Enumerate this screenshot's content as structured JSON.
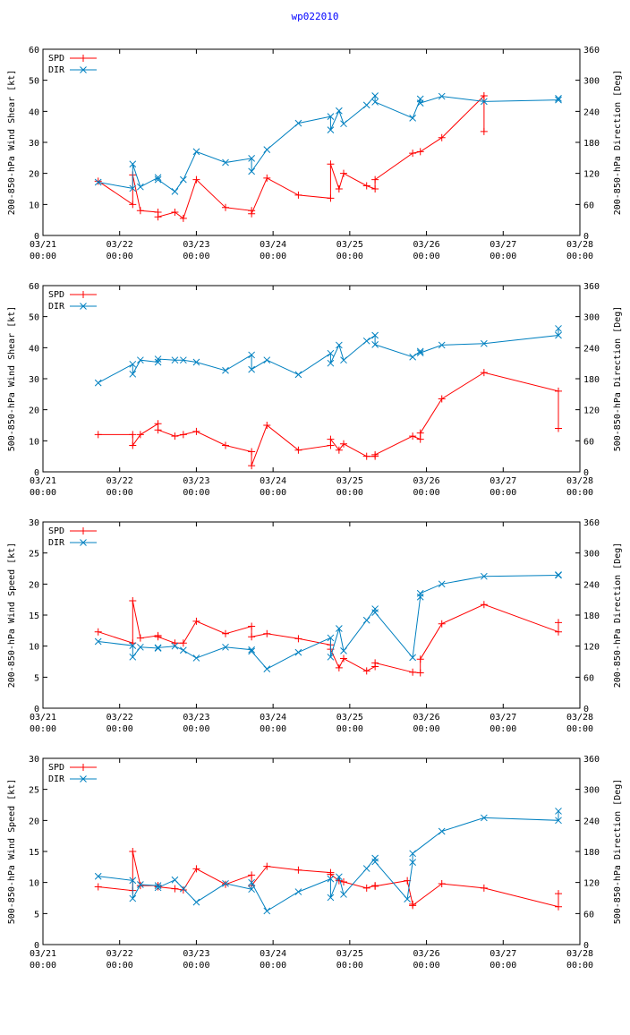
{
  "title": "wp022010",
  "x_ticks": [
    {
      "day": 0,
      "date": "03/21",
      "time": "00:00"
    },
    {
      "day": 1,
      "date": "03/22",
      "time": "00:00"
    },
    {
      "day": 2,
      "date": "03/23",
      "time": "00:00"
    },
    {
      "day": 3,
      "date": "03/24",
      "time": "00:00"
    },
    {
      "day": 4,
      "date": "03/25",
      "time": "00:00"
    },
    {
      "day": 5,
      "date": "03/26",
      "time": "00:00"
    },
    {
      "day": 6,
      "date": "03/27",
      "time": "00:00"
    },
    {
      "day": 7,
      "date": "03/28",
      "time": "00:00"
    }
  ],
  "colors": {
    "spd": "#ff0000",
    "dir": "#0080c0",
    "title": "#0000ff"
  },
  "chart_data": [
    {
      "type": "line",
      "ylabel": "200-850-hPa Wind Shear [kt]",
      "y2label": "200-850-hPa Direction [Deg]",
      "xlim": [
        0,
        7
      ],
      "ylim": [
        0,
        60
      ],
      "y2lim": [
        0,
        360
      ],
      "yticks": [
        0,
        10,
        20,
        30,
        40,
        50,
        60
      ],
      "y2ticks": [
        0,
        60,
        120,
        180,
        240,
        300,
        360
      ],
      "legend": [
        "SPD",
        "DIR"
      ],
      "series": [
        {
          "name": "SPD",
          "axis": "left",
          "x": [
            0.72,
            1.17,
            1.17,
            1.27,
            1.5,
            1.5,
            1.72,
            1.83,
            2.0,
            2.38,
            2.72,
            2.72,
            2.92,
            3.33,
            3.75,
            3.75,
            3.86,
            3.92,
            4.22,
            4.33,
            4.33,
            4.82,
            4.92,
            5.2,
            5.75,
            5.75
          ],
          "y": [
            17.5,
            10,
            19.5,
            8,
            7.5,
            6,
            7.5,
            5.5,
            18,
            9,
            8,
            7,
            18.5,
            13,
            12,
            23,
            15,
            20,
            16,
            15,
            18,
            26.5,
            27,
            31.5,
            45,
            33.5
          ]
        },
        {
          "name": "DIR",
          "axis": "right",
          "x": [
            0.72,
            1.17,
            1.17,
            1.27,
            1.5,
            1.5,
            1.72,
            1.83,
            2.0,
            2.38,
            2.72,
            2.72,
            2.92,
            3.33,
            3.75,
            3.75,
            3.86,
            3.92,
            4.22,
            4.33,
            4.33,
            4.82,
            4.92,
            4.92,
            5.2,
            5.75,
            6.72,
            6.72
          ],
          "y": [
            103,
            91,
            138,
            94,
            112,
            108,
            85,
            108,
            162,
            141,
            149,
            124,
            166,
            217,
            230,
            204,
            241,
            216,
            252,
            270,
            258,
            227,
            264,
            256,
            269,
            259,
            262,
            265
          ]
        }
      ]
    },
    {
      "type": "line",
      "ylabel": "500-850-hPa Wind Shear [kt]",
      "y2label": "500-850-hPa Direction [Deg]",
      "xlim": [
        0,
        7
      ],
      "ylim": [
        0,
        60
      ],
      "y2lim": [
        0,
        360
      ],
      "yticks": [
        0,
        10,
        20,
        30,
        40,
        50,
        60
      ],
      "y2ticks": [
        0,
        60,
        120,
        180,
        240,
        300,
        360
      ],
      "legend": [
        "SPD",
        "DIR"
      ],
      "series": [
        {
          "name": "SPD",
          "axis": "left",
          "x": [
            0.72,
            1.17,
            1.17,
            1.27,
            1.5,
            1.5,
            1.72,
            1.83,
            2.0,
            2.38,
            2.72,
            2.72,
            2.92,
            3.33,
            3.75,
            3.75,
            3.86,
            3.92,
            4.22,
            4.33,
            4.33,
            4.82,
            4.92,
            4.92,
            5.2,
            5.75,
            6.72,
            6.72
          ],
          "y": [
            12,
            12,
            8.5,
            12,
            15.5,
            13.5,
            11.5,
            12,
            13,
            8.5,
            6.5,
            2,
            15,
            7,
            8.5,
            10.5,
            7,
            9,
            5,
            5,
            5.5,
            11.5,
            10.5,
            12.5,
            23.5,
            32,
            26,
            14
          ]
        },
        {
          "name": "DIR",
          "axis": "right",
          "x": [
            0.72,
            1.17,
            1.17,
            1.27,
            1.5,
            1.5,
            1.72,
            1.83,
            2.0,
            2.38,
            2.72,
            2.72,
            2.92,
            3.33,
            3.75,
            3.75,
            3.86,
            3.92,
            4.22,
            4.33,
            4.33,
            4.82,
            4.92,
            4.92,
            5.2,
            5.75,
            6.72,
            6.72
          ],
          "y": [
            172,
            208,
            189,
            216,
            212,
            218,
            216,
            216,
            212,
            196,
            226,
            198,
            216,
            188,
            229,
            210,
            245,
            216,
            253,
            264,
            246,
            222,
            233,
            230,
            245,
            248,
            264,
            277
          ]
        }
      ]
    },
    {
      "type": "line",
      "ylabel": "200-850-hPa Wind Speed [kt]",
      "y2label": "200-850-hPa Direction [Deg]",
      "xlim": [
        0,
        7
      ],
      "ylim": [
        0,
        30
      ],
      "y2lim": [
        0,
        360
      ],
      "yticks": [
        0,
        5,
        10,
        15,
        20,
        25,
        30
      ],
      "y2ticks": [
        0,
        60,
        120,
        180,
        240,
        300,
        360
      ],
      "legend": [
        "SPD",
        "DIR"
      ],
      "series": [
        {
          "name": "SPD",
          "axis": "left",
          "x": [
            0.72,
            1.17,
            1.17,
            1.27,
            1.5,
            1.5,
            1.72,
            1.83,
            2.0,
            2.38,
            2.72,
            2.72,
            2.92,
            3.33,
            3.75,
            3.75,
            3.86,
            3.92,
            4.22,
            4.33,
            4.33,
            4.82,
            4.92,
            4.92,
            5.2,
            5.75,
            6.72,
            6.72
          ],
          "y": [
            12.3,
            10.5,
            17.3,
            11.3,
            11.7,
            11.5,
            10.5,
            10.5,
            14,
            12,
            13.2,
            11.5,
            12,
            11.2,
            10.2,
            9.5,
            6.5,
            8,
            6,
            6.7,
            7.3,
            5.8,
            5.7,
            7.9,
            13.6,
            16.7,
            12.3,
            13.8
          ]
        },
        {
          "name": "DIR",
          "axis": "right",
          "x": [
            0.72,
            1.17,
            1.17,
            1.27,
            1.5,
            1.5,
            1.72,
            1.83,
            2.0,
            2.38,
            2.72,
            2.72,
            2.92,
            3.33,
            3.75,
            3.75,
            3.86,
            3.92,
            4.22,
            4.33,
            4.33,
            4.82,
            4.92,
            4.92,
            5.2,
            5.75,
            6.72,
            6.72
          ],
          "y": [
            129,
            121,
            99,
            118,
            116,
            117,
            120,
            112,
            97,
            118,
            113,
            110,
            76,
            108,
            136,
            99,
            154,
            111,
            170,
            192,
            185,
            98,
            215,
            222,
            240,
            255,
            257,
            258
          ]
        }
      ]
    },
    {
      "type": "line",
      "ylabel": "500-850-hPa Wind Speed [kt]",
      "y2label": "500-850-hPa Direction [Deg]",
      "xlim": [
        0,
        7
      ],
      "ylim": [
        0,
        30
      ],
      "y2lim": [
        0,
        360
      ],
      "yticks": [
        0,
        5,
        10,
        15,
        20,
        25,
        30
      ],
      "y2ticks": [
        0,
        60,
        120,
        180,
        240,
        300,
        360
      ],
      "legend": [
        "SPD",
        "DIR"
      ],
      "series": [
        {
          "name": "SPD",
          "axis": "left",
          "x": [
            0.72,
            1.17,
            1.17,
            1.27,
            1.5,
            1.5,
            1.72,
            1.83,
            2.0,
            2.38,
            2.72,
            2.72,
            2.92,
            3.33,
            3.75,
            3.75,
            3.86,
            3.92,
            4.22,
            4.33,
            4.33,
            4.75,
            4.82,
            4.82,
            5.2,
            5.75,
            6.72,
            6.72
          ],
          "y": [
            9.3,
            8.7,
            15,
            9.5,
            9.5,
            9.3,
            9,
            8.8,
            12.2,
            9.7,
            11.2,
            9.5,
            12.6,
            12,
            11.6,
            11.3,
            10.3,
            10.1,
            9.1,
            9.5,
            9.4,
            10.3,
            6.5,
            6.3,
            9.8,
            9.1,
            6.1,
            8.2
          ]
        },
        {
          "name": "DIR",
          "axis": "right",
          "x": [
            0.72,
            1.17,
            1.17,
            1.27,
            1.5,
            1.5,
            1.72,
            1.83,
            2.0,
            2.38,
            2.72,
            2.72,
            2.92,
            3.33,
            3.75,
            3.75,
            3.86,
            3.92,
            4.22,
            4.33,
            4.33,
            4.75,
            4.82,
            4.82,
            5.2,
            5.75,
            6.72,
            6.72
          ],
          "y": [
            132,
            124,
            89,
            116,
            114,
            110,
            125,
            108,
            82,
            118,
            107,
            120,
            65,
            102,
            127,
            91,
            131,
            97,
            147,
            167,
            160,
            88,
            159,
            176,
            219,
            245,
            240,
            258
          ]
        }
      ]
    }
  ]
}
